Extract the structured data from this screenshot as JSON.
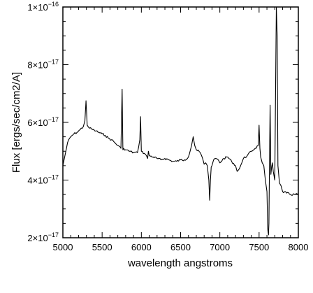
{
  "chart_data": {
    "type": "line",
    "title": "",
    "xlabel": "wavelength angstroms",
    "ylabel": "Flux [ergs/sec/cm2/A]",
    "xlim": [
      5000,
      8000
    ],
    "ylim": [
      2e-17,
      1e-16
    ],
    "grid": false,
    "legend": "none",
    "x_tick_labels": [
      "5000",
      "5500",
      "6000",
      "6500",
      "7000",
      "7500",
      "8000"
    ],
    "y_tick_labels": [
      {
        "base": "2×10",
        "exp": "−17"
      },
      {
        "base": "4×10",
        "exp": "−17"
      },
      {
        "base": "6×10",
        "exp": "−17"
      },
      {
        "base": "8×10",
        "exp": "−17"
      },
      {
        "base": "1×10",
        "exp": "−16"
      }
    ],
    "series": [
      {
        "color": "#000000",
        "x": [
          5000,
          5030,
          5060,
          5100,
          5140,
          5180,
          5220,
          5260,
          5280,
          5295,
          5310,
          5340,
          5380,
          5420,
          5460,
          5500,
          5540,
          5580,
          5620,
          5660,
          5700,
          5740,
          5755,
          5765,
          5775,
          5800,
          5850,
          5900,
          5950,
          5980,
          5990,
          6000,
          6050,
          6080,
          6090,
          6100,
          6150,
          6200,
          6250,
          6300,
          6350,
          6400,
          6450,
          6500,
          6550,
          6600,
          6640,
          6660,
          6680,
          6700,
          6750,
          6780,
          6800,
          6820,
          6840,
          6860,
          6870,
          6880,
          6890,
          6900,
          6920,
          6950,
          6980,
          7000,
          7050,
          7100,
          7150,
          7200,
          7220,
          7250,
          7280,
          7300,
          7350,
          7400,
          7450,
          7490,
          7500,
          7510,
          7520,
          7540,
          7560,
          7580,
          7600,
          7610,
          7620,
          7625,
          7630,
          7640,
          7650,
          7660,
          7670,
          7680,
          7700,
          7720,
          7730,
          7740,
          7750,
          7760,
          7780,
          7800,
          7850,
          7900,
          7950,
          8000
        ],
        "y": [
          4.5e-17,
          4.9e-17,
          5.3e-17,
          5.5e-17,
          5.6e-17,
          5.65e-17,
          5.75e-17,
          5.85e-17,
          6.05e-17,
          6.75e-17,
          5.9e-17,
          5.8e-17,
          5.75e-17,
          5.7e-17,
          5.65e-17,
          5.6e-17,
          5.55e-17,
          5.45e-17,
          5.4e-17,
          5.3e-17,
          5.2e-17,
          5.1e-17,
          7.15e-17,
          5.05e-17,
          5.1e-17,
          5.05e-17,
          5e-17,
          4.95e-17,
          4.95e-17,
          5.4e-17,
          6.2e-17,
          5e-17,
          4.9e-17,
          4.75e-17,
          5e-17,
          4.85e-17,
          4.8e-17,
          4.75e-17,
          4.7e-17,
          4.75e-17,
          4.7e-17,
          4.65e-17,
          4.65e-17,
          4.7e-17,
          4.7e-17,
          4.8e-17,
          5.2e-17,
          5.5e-17,
          5.2e-17,
          5.05e-17,
          4.95e-17,
          4.75e-17,
          4.55e-17,
          4.6e-17,
          4.5e-17,
          4e-17,
          3.3e-17,
          4e-17,
          4.45e-17,
          4.5e-17,
          4.7e-17,
          4.75e-17,
          4.7e-17,
          4.6e-17,
          4.75e-17,
          4.8e-17,
          4.65e-17,
          4.5e-17,
          4.3e-17,
          4.4e-17,
          4.6e-17,
          4.75e-17,
          4.85e-17,
          5e-17,
          5.1e-17,
          5.2e-17,
          5.9e-17,
          5.1e-17,
          4.8e-17,
          4.6e-17,
          4.5e-17,
          4e-17,
          3.6e-17,
          2.3e-17,
          2.1e-17,
          2.5e-17,
          3.8e-17,
          6.6e-17,
          4.2e-17,
          4.45e-17,
          4.6e-17,
          4.3e-17,
          4e-17,
          1e-16,
          9e-17,
          4.5e-17,
          4.2e-17,
          3.9e-17,
          3.8e-17,
          3.6e-17,
          3.55e-17,
          3.5e-17,
          3.5e-17,
          3.5e-17
        ]
      }
    ]
  }
}
